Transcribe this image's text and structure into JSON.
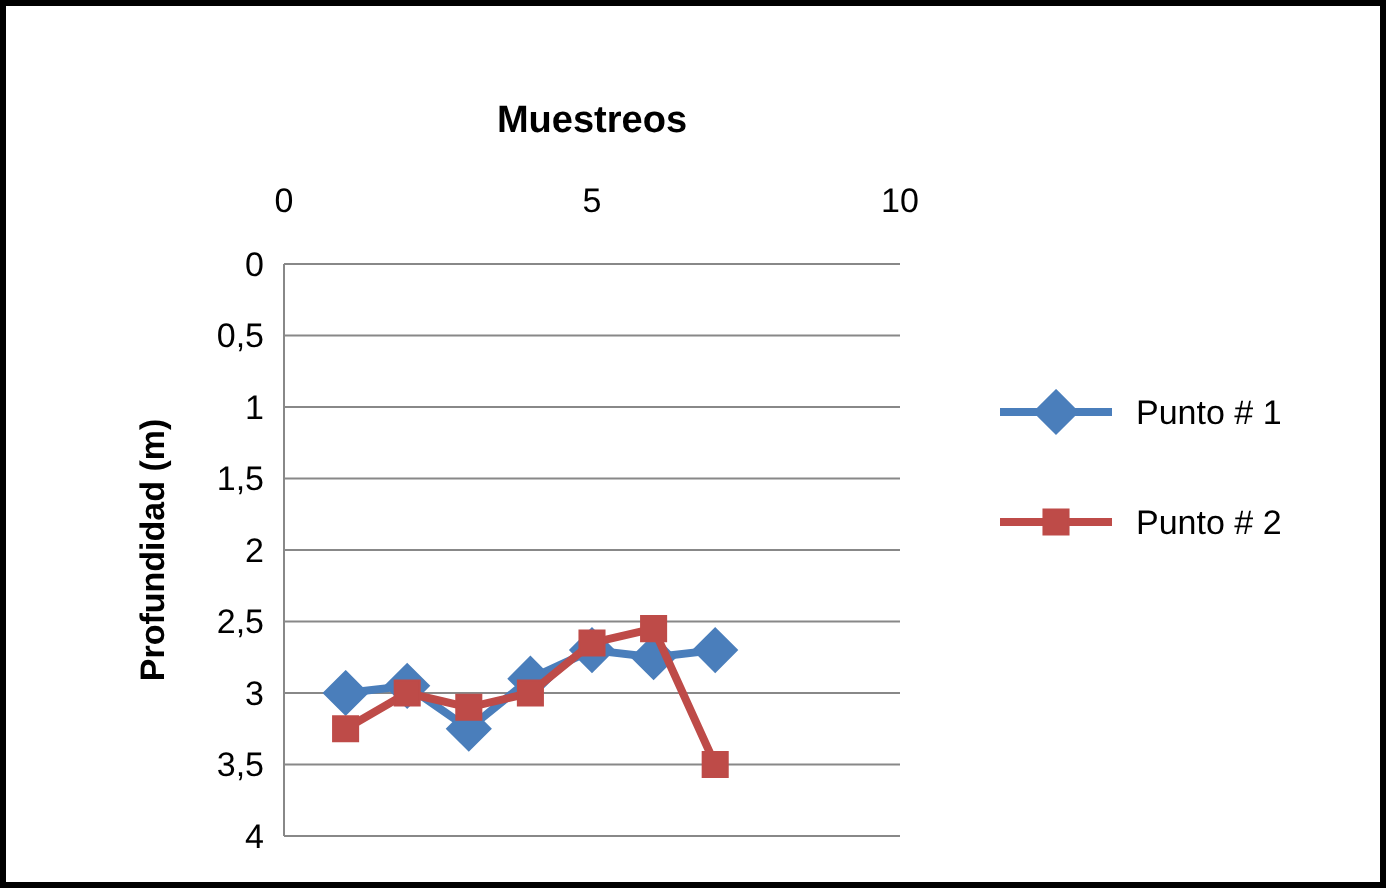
{
  "chart_data": {
    "type": "line",
    "title": "Muestreos",
    "ylabel": "Profundidad (m)",
    "x": [
      1,
      2,
      3,
      4,
      5,
      6,
      7
    ],
    "xlim": [
      0,
      10
    ],
    "xticks": [
      0,
      5,
      10
    ],
    "ylim": [
      4,
      0
    ],
    "yticks": [
      0,
      {
        "value": 0.5,
        "label": "0,5"
      },
      1,
      {
        "value": 1.5,
        "label": "1,5"
      },
      2,
      {
        "value": 2.5,
        "label": "2,5"
      },
      3,
      {
        "value": 3.5,
        "label": "3,5"
      },
      4
    ],
    "grid": "y",
    "legend": "right",
    "series": [
      {
        "name": "Punto # 1",
        "color": "#4a7ebb",
        "marker": "diamond",
        "values": [
          3,
          2.95,
          3.25,
          2.9,
          2.7,
          2.75,
          2.7
        ]
      },
      {
        "name": "Punto # 2",
        "color": "#be4b48",
        "marker": "square",
        "values": [
          3.25,
          3,
          3.1,
          3,
          2.65,
          2.55,
          3.5
        ]
      }
    ]
  }
}
